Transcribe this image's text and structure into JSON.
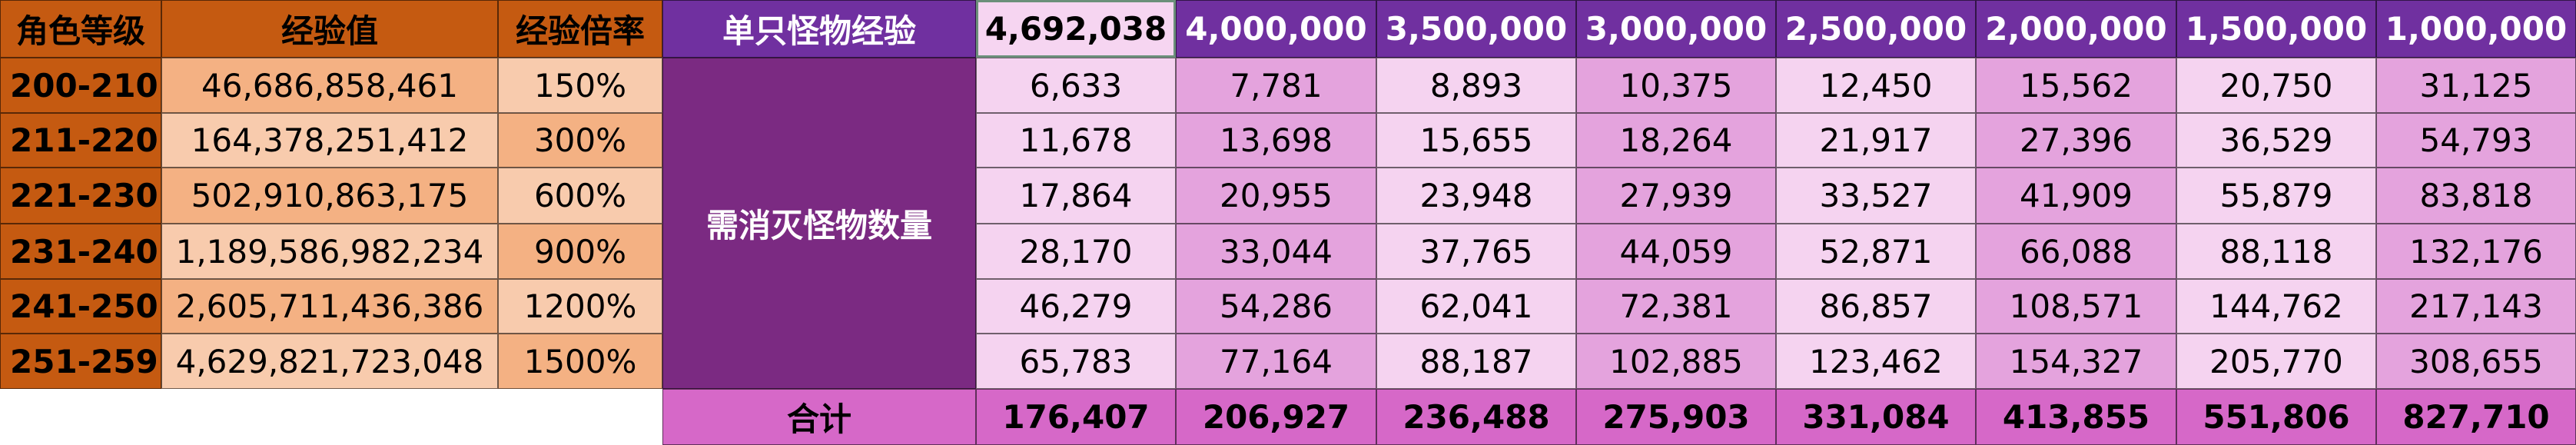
{
  "left_table": {
    "headers": [
      "角色等级",
      "经验值",
      "经验倍率"
    ],
    "rows": [
      [
        "200-210",
        "46,686,858,461",
        "150%"
      ],
      [
        "211-220",
        "164,378,251,412",
        "300%"
      ],
      [
        "221-230",
        "502,910,863,175",
        "600%"
      ],
      [
        "231-240",
        "1,189,586,982,234",
        "900%"
      ],
      [
        "241-250",
        "2,605,711,436,386",
        "1200%"
      ],
      [
        "251-259",
        "4,629,821,723,048",
        "1500%"
      ]
    ]
  },
  "right_table": {
    "header_label": "单只怪物经验",
    "monster_exp": [
      "4,692,038",
      "4,000,000",
      "3,500,000",
      "3,000,000",
      "2,500,000",
      "2,000,000",
      "1,500,000",
      "1,000,000"
    ],
    "row_label": "需消灭怪物数量",
    "counts": [
      [
        "6,633",
        "7,781",
        "8,893",
        "10,375",
        "12,450",
        "15,562",
        "20,750",
        "31,125"
      ],
      [
        "11,678",
        "13,698",
        "15,655",
        "18,264",
        "21,917",
        "27,396",
        "36,529",
        "54,793"
      ],
      [
        "17,864",
        "20,955",
        "23,948",
        "27,939",
        "33,527",
        "41,909",
        "55,879",
        "83,818"
      ],
      [
        "28,170",
        "33,044",
        "37,765",
        "44,059",
        "52,871",
        "66,088",
        "88,118",
        "132,176"
      ],
      [
        "46,279",
        "54,286",
        "62,041",
        "72,381",
        "86,857",
        "108,571",
        "144,762",
        "217,143"
      ],
      [
        "65,783",
        "77,164",
        "88,187",
        "102,885",
        "123,462",
        "154,327",
        "205,770",
        "308,655"
      ]
    ],
    "total_label": "合计",
    "totals": [
      "176,407",
      "206,927",
      "236,488",
      "275,903",
      "331,084",
      "413,855",
      "551,806",
      "827,710"
    ]
  }
}
